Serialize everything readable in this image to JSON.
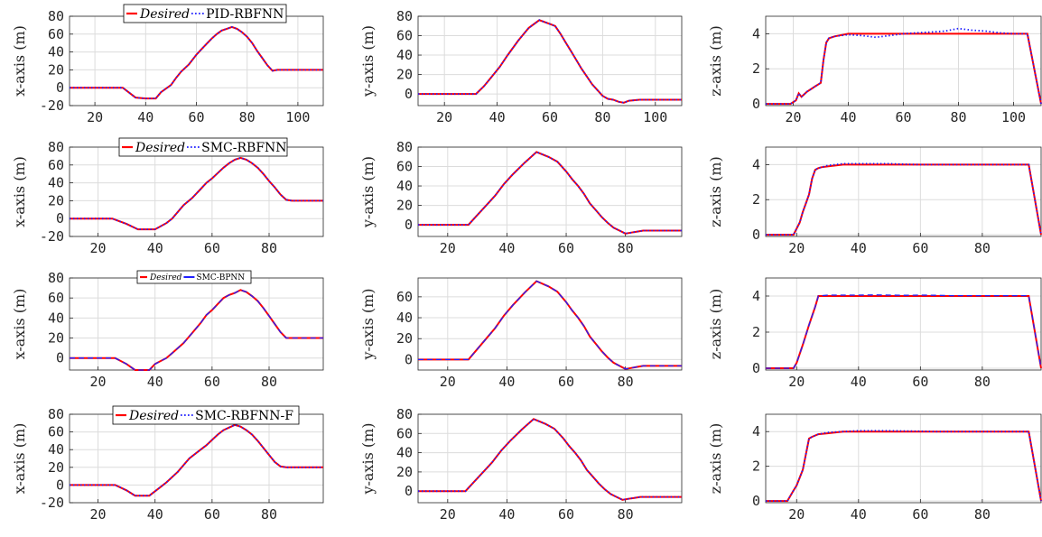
{
  "colors": {
    "desired": "#ff0000",
    "estimated": "#1f1fff",
    "grid": "#dcdcdc",
    "axis": "#262626"
  },
  "legend": {
    "desired": "Desired"
  },
  "chart_data": [
    {
      "type": "line",
      "row": 0,
      "col": 0,
      "ylabel": "x-axis (m)",
      "xlim": [
        10,
        110
      ],
      "ylim": [
        -20,
        80
      ],
      "xticks": [
        20,
        40,
        60,
        80,
        100
      ],
      "yticks": [
        -20,
        0,
        20,
        40,
        60,
        80
      ],
      "legend_name": "PID-RBFNN",
      "legend_style": "dotted",
      "x": [
        10,
        31,
        36,
        40,
        44,
        46,
        50,
        52,
        54,
        57,
        60,
        62,
        64,
        66,
        68,
        70,
        72,
        74,
        76,
        78,
        80,
        82,
        84,
        86,
        88,
        90,
        92,
        95,
        110
      ],
      "y": [
        0,
        0,
        -11,
        -12,
        -12,
        -5,
        3,
        11,
        18,
        26,
        37,
        43,
        49,
        55,
        60,
        64,
        66,
        68,
        66,
        62,
        57,
        50,
        41,
        33,
        25,
        19,
        20,
        20,
        20
      ],
      "series": [
        {
          "name": "Desired"
        },
        {
          "name": "PID-RBFNN"
        }
      ]
    },
    {
      "type": "line",
      "row": 0,
      "col": 1,
      "ylabel": "y-axis (m)",
      "xlim": [
        10,
        110
      ],
      "ylim": [
        -12,
        80
      ],
      "xticks": [
        20,
        40,
        60,
        80,
        100
      ],
      "yticks": [
        0,
        20,
        40,
        60,
        80
      ],
      "legend_name": "",
      "legend_style": "dotted",
      "x": [
        10,
        32,
        35,
        38,
        41,
        44,
        48,
        52,
        56,
        60,
        62,
        64,
        66,
        68,
        70,
        72,
        74,
        76,
        78,
        80,
        82,
        84,
        86,
        88,
        90,
        94,
        110
      ],
      "y": [
        0,
        0,
        8,
        18,
        28,
        40,
        55,
        68,
        76,
        72,
        70,
        62,
        53,
        44,
        35,
        26,
        18,
        10,
        4,
        -2,
        -5,
        -6,
        -8,
        -9,
        -7,
        -6,
        -6
      ],
      "series": [
        {
          "name": "Desired"
        }
      ]
    },
    {
      "type": "line",
      "row": 0,
      "col": 2,
      "ylabel": "z-axis (m)",
      "xlim": [
        10,
        110
      ],
      "ylim": [
        -0.1,
        5
      ],
      "xticks": [
        20,
        40,
        60,
        80,
        100
      ],
      "yticks": [
        0,
        2,
        4
      ],
      "legend_name": "",
      "legend_style": "dotted",
      "x": [
        10,
        19,
        21,
        22,
        23,
        25,
        27,
        28,
        30,
        31,
        32,
        33,
        35,
        40,
        45,
        50,
        55,
        60,
        65,
        70,
        75,
        80,
        85,
        90,
        95,
        100,
        105,
        110
      ],
      "y": [
        0,
        0,
        0.2,
        0.6,
        0.4,
        0.7,
        0.9,
        1,
        1.2,
        2.5,
        3.5,
        3.75,
        3.85,
        4,
        4,
        4,
        4,
        4,
        4,
        4,
        4,
        4,
        4,
        4,
        4,
        4,
        4,
        0
      ],
      "est": [
        0,
        0,
        0.2,
        0.6,
        0.4,
        0.7,
        0.9,
        1,
        1.2,
        2.5,
        3.5,
        3.75,
        3.85,
        3.95,
        3.9,
        3.8,
        3.9,
        4,
        4.05,
        4.1,
        4.15,
        4.3,
        4.2,
        4.15,
        4.05,
        4,
        4,
        0
      ],
      "series": [
        {
          "name": "Desired"
        }
      ]
    },
    {
      "type": "line",
      "row": 1,
      "col": 0,
      "ylabel": "x-axis (m)",
      "xlim": [
        10,
        99
      ],
      "ylim": [
        -20,
        80
      ],
      "xticks": [
        20,
        40,
        60,
        80
      ],
      "yticks": [
        -20,
        0,
        20,
        40,
        60,
        80
      ],
      "legend_name": "SMC-RBFNN",
      "legend_style": "dotted",
      "x": [
        10,
        25,
        30,
        34,
        37,
        40,
        44,
        46,
        50,
        53,
        56,
        58,
        60,
        62,
        64,
        66,
        68,
        70,
        72,
        74,
        76,
        78,
        80,
        82,
        84,
        86,
        88,
        90,
        99
      ],
      "y": [
        0,
        0,
        -6,
        -12,
        -12,
        -12,
        -5,
        0,
        15,
        23,
        33,
        40,
        45,
        51,
        57,
        62,
        66,
        68,
        66,
        62,
        57,
        50,
        42,
        35,
        27,
        21,
        20,
        20,
        20
      ],
      "series": [
        {
          "name": "Desired"
        },
        {
          "name": "SMC-RBFNN"
        }
      ]
    },
    {
      "type": "line",
      "row": 1,
      "col": 1,
      "ylabel": "y-axis (m)",
      "xlim": [
        10,
        99
      ],
      "ylim": [
        -12,
        80
      ],
      "xticks": [
        20,
        40,
        60,
        80
      ],
      "yticks": [
        0,
        20,
        40,
        60,
        80
      ],
      "legend_name": "",
      "legend_style": "dotted",
      "x": [
        10,
        27,
        30,
        33,
        36,
        39,
        42,
        46,
        50,
        54,
        57,
        60,
        62,
        64,
        66,
        68,
        70,
        72,
        74,
        76,
        78,
        80,
        82,
        84,
        86,
        88,
        90,
        99
      ],
      "y": [
        0,
        0,
        10,
        20,
        30,
        42,
        52,
        64,
        75,
        70,
        65,
        55,
        47,
        40,
        32,
        22,
        15,
        8,
        2,
        -3,
        -6,
        -9,
        -8,
        -7,
        -6,
        -6,
        -6,
        -6
      ],
      "series": [
        {
          "name": "Desired"
        }
      ]
    },
    {
      "type": "line",
      "row": 1,
      "col": 2,
      "ylabel": "z-axis (m)",
      "xlim": [
        10,
        99
      ],
      "ylim": [
        -0.1,
        5
      ],
      "xticks": [
        20,
        40,
        60,
        80
      ],
      "yticks": [
        0,
        2,
        4
      ],
      "legend_name": "",
      "legend_style": "dotted",
      "x": [
        10,
        19,
        21,
        22,
        23,
        24,
        25,
        26,
        27,
        28,
        30,
        35,
        40,
        45,
        50,
        55,
        60,
        65,
        70,
        75,
        80,
        85,
        90,
        95,
        99
      ],
      "y": [
        0,
        0,
        0.7,
        1.3,
        1.8,
        2.3,
        3.2,
        3.7,
        3.8,
        3.85,
        3.9,
        4,
        4,
        4,
        4,
        4,
        4,
        4,
        4,
        4,
        4,
        4,
        4,
        4,
        0
      ],
      "est": [
        0,
        0,
        0.7,
        1.3,
        1.8,
        2.3,
        3.2,
        3.7,
        3.8,
        3.85,
        3.95,
        4.05,
        4.05,
        4.05,
        4.05,
        4.02,
        4,
        4,
        4,
        4,
        4,
        4,
        4,
        4,
        0
      ],
      "series": [
        {
          "name": "Desired"
        }
      ]
    },
    {
      "type": "line",
      "row": 2,
      "col": 0,
      "ylabel": "x-axis (m)",
      "xlim": [
        10,
        99
      ],
      "ylim": [
        -12,
        80
      ],
      "xticks": [
        20,
        40,
        60,
        80
      ],
      "yticks": [
        0,
        20,
        40,
        60,
        80
      ],
      "legend_name": "SMC-BPNN",
      "legend_style": "solid",
      "x": [
        10,
        26,
        30,
        33,
        36,
        38,
        40,
        44,
        46,
        50,
        53,
        56,
        58,
        60,
        62,
        64,
        66,
        68,
        70,
        72,
        74,
        76,
        78,
        80,
        82,
        84,
        86,
        88,
        90,
        99
      ],
      "y": [
        0,
        0,
        -6,
        -12,
        -12,
        -12,
        -6,
        0,
        5,
        15,
        25,
        35,
        43,
        48,
        54,
        60,
        63,
        65,
        68,
        66,
        62,
        57,
        50,
        42,
        34,
        26,
        20,
        20,
        20,
        20
      ],
      "series": [
        {
          "name": "Desired"
        },
        {
          "name": "SMC-BPNN"
        }
      ]
    },
    {
      "type": "line",
      "row": 2,
      "col": 1,
      "ylabel": "y-axis (m)",
      "xlim": [
        10,
        99
      ],
      "ylim": [
        -10,
        78
      ],
      "xticks": [
        20,
        40,
        60,
        80
      ],
      "yticks": [
        0,
        20,
        40,
        60
      ],
      "legend_name": "",
      "legend_style": "solid",
      "x": [
        10,
        27,
        30,
        33,
        36,
        39,
        42,
        46,
        50,
        54,
        57,
        60,
        62,
        64,
        66,
        68,
        70,
        72,
        74,
        76,
        78,
        80,
        82,
        84,
        86,
        88,
        90,
        99
      ],
      "y": [
        0,
        0,
        10,
        20,
        30,
        42,
        52,
        64,
        75,
        70,
        65,
        55,
        47,
        40,
        32,
        22,
        15,
        8,
        2,
        -3,
        -6,
        -9,
        -8,
        -7,
        -6,
        -6,
        -6,
        -6
      ],
      "series": [
        {
          "name": "Desired"
        }
      ]
    },
    {
      "type": "line",
      "row": 2,
      "col": 2,
      "ylabel": "z-axis (m)",
      "xlim": [
        10,
        99
      ],
      "ylim": [
        -0.1,
        5
      ],
      "xticks": [
        20,
        40,
        60,
        80
      ],
      "yticks": [
        0,
        2,
        4
      ],
      "legend_name": "",
      "legend_style": "solid",
      "x": [
        10,
        19,
        20,
        22,
        24,
        26,
        27,
        28,
        30,
        35,
        40,
        45,
        50,
        55,
        60,
        65,
        70,
        75,
        80,
        85,
        90,
        95,
        99
      ],
      "y": [
        0,
        0,
        0.3,
        1.3,
        2.4,
        3.4,
        4,
        4,
        4,
        4,
        4,
        4,
        4,
        4,
        4,
        4,
        4,
        4,
        4,
        4,
        4,
        4,
        0
      ],
      "est": [
        0,
        0,
        0.3,
        1.3,
        2.4,
        3.4,
        4,
        4.02,
        4.05,
        4.05,
        4.05,
        4.06,
        4.05,
        4.04,
        4.05,
        4.04,
        4.02,
        4.02,
        4.02,
        4.02,
        4.02,
        4.02,
        0
      ],
      "series": [
        {
          "name": "Desired"
        }
      ]
    },
    {
      "type": "line",
      "row": 3,
      "col": 0,
      "ylabel": "x-axis (m)",
      "xlim": [
        10,
        99
      ],
      "ylim": [
        -20,
        80
      ],
      "xticks": [
        20,
        40,
        60,
        80
      ],
      "yticks": [
        -20,
        0,
        20,
        40,
        60,
        80
      ],
      "legend_name": "SMC-RBFNN-F",
      "legend_style": "dotted",
      "x": [
        10,
        26,
        30,
        33,
        36,
        38,
        42,
        44,
        48,
        52,
        56,
        58,
        60,
        62,
        64,
        66,
        68,
        70,
        72,
        74,
        76,
        78,
        80,
        82,
        84,
        86,
        88,
        90,
        99
      ],
      "y": [
        0,
        0,
        -6,
        -12,
        -12,
        -12,
        -2,
        3,
        15,
        30,
        40,
        45,
        51,
        57,
        62,
        65,
        68,
        66,
        62,
        57,
        50,
        42,
        34,
        26,
        21,
        20,
        20,
        20,
        20
      ],
      "series": [
        {
          "name": "Desired"
        },
        {
          "name": "SMC-RBFNN-F"
        }
      ]
    },
    {
      "type": "line",
      "row": 3,
      "col": 1,
      "ylabel": "y-axis (m)",
      "xlim": [
        10,
        99
      ],
      "ylim": [
        -12,
        80
      ],
      "xticks": [
        20,
        40,
        60,
        80
      ],
      "yticks": [
        0,
        20,
        40,
        60,
        80
      ],
      "legend_name": "",
      "legend_style": "dotted",
      "x": [
        10,
        26,
        29,
        32,
        35,
        38,
        41,
        45,
        49,
        53,
        56,
        59,
        61,
        63,
        65,
        67,
        69,
        71,
        73,
        75,
        77,
        79,
        81,
        83,
        85,
        87,
        89,
        99
      ],
      "y": [
        0,
        0,
        10,
        20,
        30,
        42,
        52,
        64,
        75,
        70,
        65,
        55,
        47,
        40,
        32,
        22,
        15,
        8,
        2,
        -3,
        -6,
        -9,
        -8,
        -7,
        -6,
        -6,
        -6,
        -6
      ],
      "series": [
        {
          "name": "Desired"
        }
      ]
    },
    {
      "type": "line",
      "row": 3,
      "col": 2,
      "ylabel": "z-axis (m)",
      "xlim": [
        10,
        99
      ],
      "ylim": [
        -0.1,
        5
      ],
      "xticks": [
        20,
        40,
        60,
        80
      ],
      "yticks": [
        0,
        2,
        4
      ],
      "legend_name": "",
      "legend_style": "dotted",
      "x": [
        10,
        17,
        19,
        20,
        22,
        24,
        25,
        27,
        30,
        35,
        40,
        45,
        50,
        55,
        60,
        65,
        70,
        75,
        80,
        85,
        90,
        95,
        99
      ],
      "y": [
        0,
        0,
        0.6,
        0.9,
        1.8,
        3.6,
        3.7,
        3.85,
        3.9,
        4,
        4,
        4,
        4,
        4,
        4,
        4,
        4,
        4,
        4,
        4,
        4,
        4,
        0
      ],
      "est": [
        0,
        0,
        0.6,
        0.9,
        1.8,
        3.6,
        3.7,
        3.85,
        3.95,
        4,
        4.05,
        4.05,
        4.05,
        4.03,
        4.02,
        4,
        4,
        4,
        4,
        4,
        4,
        4,
        0
      ],
      "series": [
        {
          "name": "Desired"
        }
      ]
    }
  ]
}
